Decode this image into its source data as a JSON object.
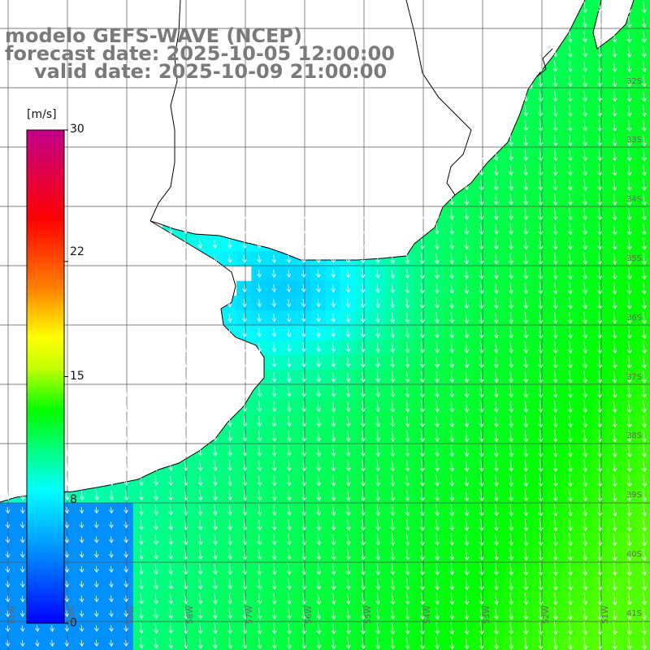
{
  "title": {
    "line1": "modelo GEFS-WAVE (NCEP)",
    "line2": "forecast date: 2025-10-05 12:00:00",
    "line3": "valid date: 2025-10-09 21:00:00"
  },
  "colorbar": {
    "unit": "[m/s]",
    "ticks": [
      {
        "value": 30,
        "label": "30"
      },
      {
        "value": 22,
        "label": "22"
      },
      {
        "value": 15,
        "label": "15"
      },
      {
        "value": 8,
        "label": "8"
      },
      {
        "value": 0,
        "label": "0"
      }
    ],
    "range": [
      0,
      30
    ]
  },
  "lat_labels": [
    "32S",
    "33S",
    "34S",
    "35S",
    "36S",
    "37S",
    "38S",
    "39S",
    "40S",
    "41S"
  ],
  "lon_labels": [
    "61W",
    "60W",
    "59W",
    "58W",
    "57W",
    "56W",
    "55W",
    "54W",
    "53W",
    "52W",
    "51W"
  ],
  "colors": {
    "land": "#ffffff",
    "coast": "#000000",
    "grid": "#555555",
    "arrow": "#ffffff",
    "title": "#7a7a7a"
  },
  "field": {
    "variable": "wind speed",
    "direction": "from north-northwest toward south-southeast",
    "coastal_minimum_ms": 3,
    "offshore_maximum_ms": 14
  }
}
